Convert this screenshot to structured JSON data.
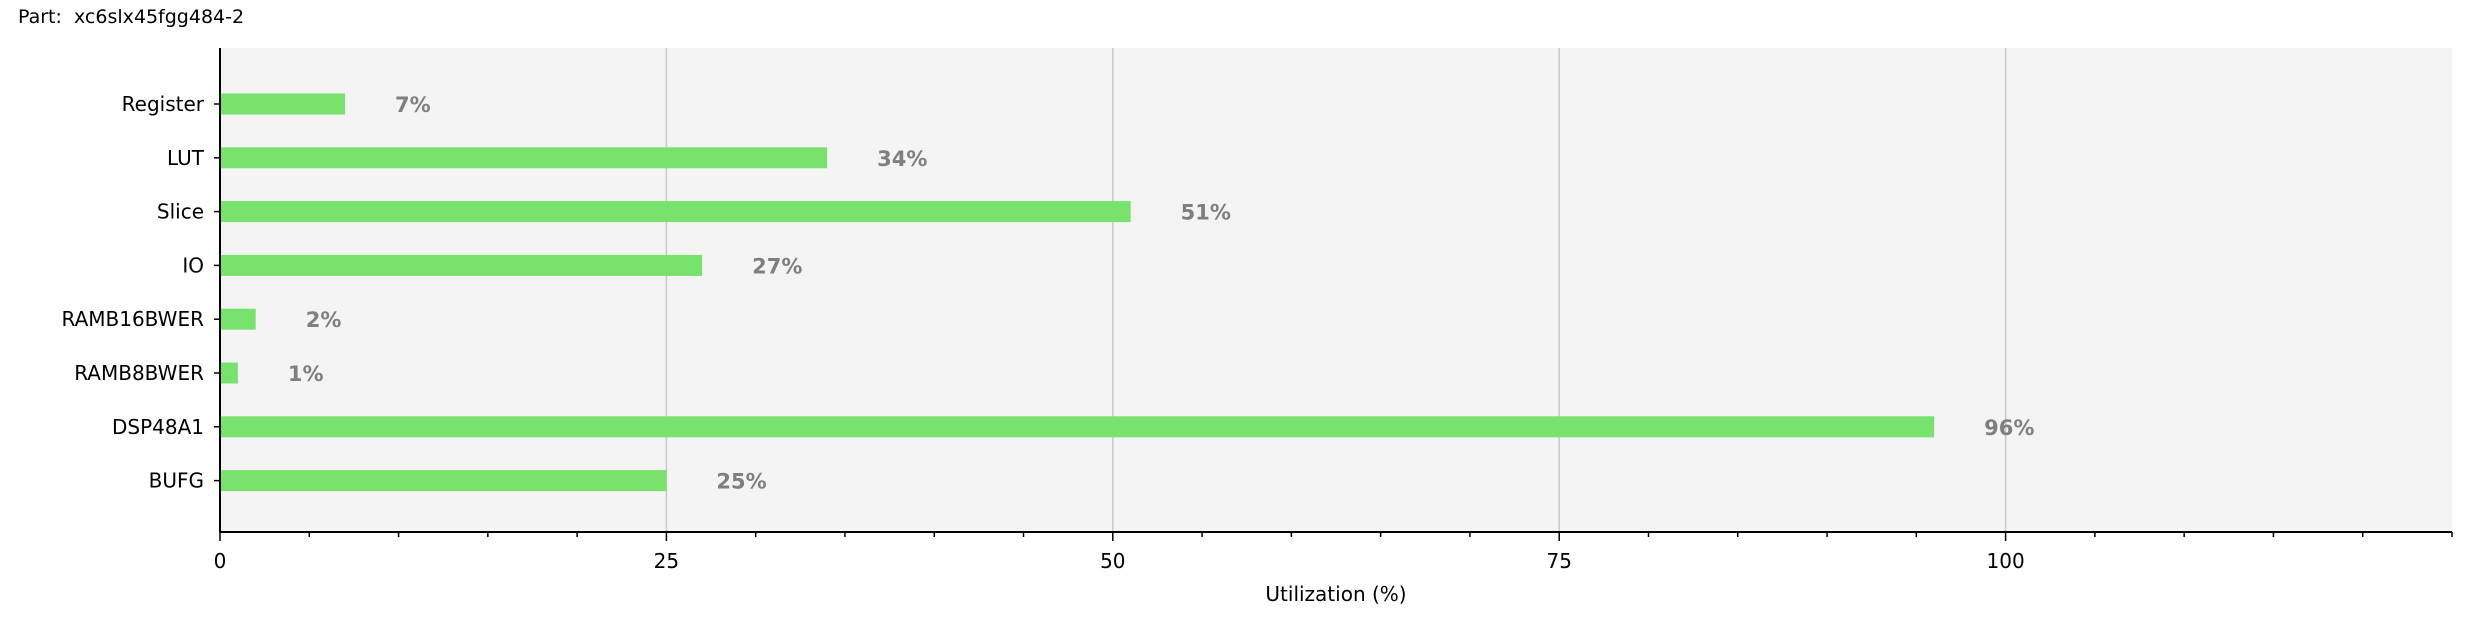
{
  "header": {
    "part_label": "Part:",
    "part_value": "xc6slx45fgg484-2"
  },
  "colors": {
    "bar": "#77e36d",
    "plot_background": "#f4f4f4",
    "gridline": "#c8c8c8",
    "value_label": "#7f7f7f"
  },
  "chart_data": {
    "type": "bar",
    "orientation": "horizontal",
    "categories": [
      "Register",
      "LUT",
      "Slice",
      "IO",
      "RAMB16BWER",
      "RAMB8BWER",
      "DSP48A1",
      "BUFG"
    ],
    "values": [
      7,
      34,
      51,
      27,
      2,
      1,
      96,
      25
    ],
    "value_labels": [
      "7%",
      "34%",
      "51%",
      "27%",
      "2%",
      "1%",
      "96%",
      "25%"
    ],
    "xlabel": "Utilization (%)",
    "ylabel": "",
    "xlim": [
      0,
      125
    ],
    "x_ticks": [
      0,
      25,
      50,
      75,
      100
    ],
    "x_tick_labels": [
      "0",
      "25",
      "50",
      "75",
      "100"
    ],
    "grid": true
  }
}
